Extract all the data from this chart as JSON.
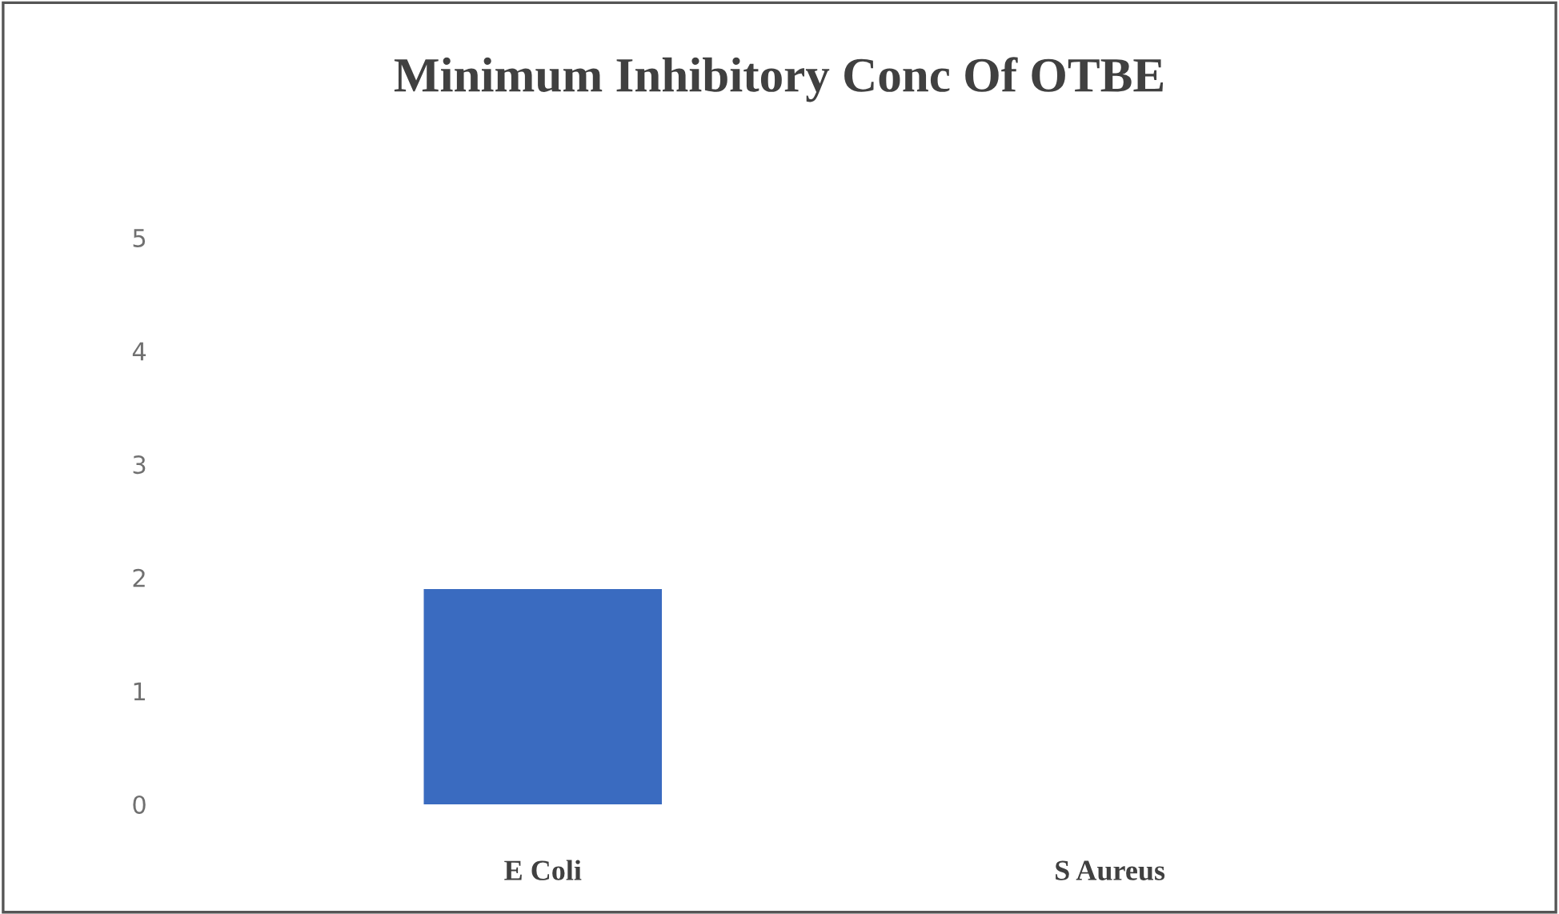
{
  "chart_data": {
    "type": "bar",
    "title": "Minimum Inhibitory Conc Of OTBE",
    "categories": [
      "E Coli",
      "S Aureus"
    ],
    "values": [
      1.9,
      0
    ],
    "color": "#3a6bc0",
    "ylim": [
      0,
      5
    ],
    "yticks": [
      0,
      1,
      2,
      3,
      4,
      5
    ],
    "grid": false,
    "legend": false
  }
}
